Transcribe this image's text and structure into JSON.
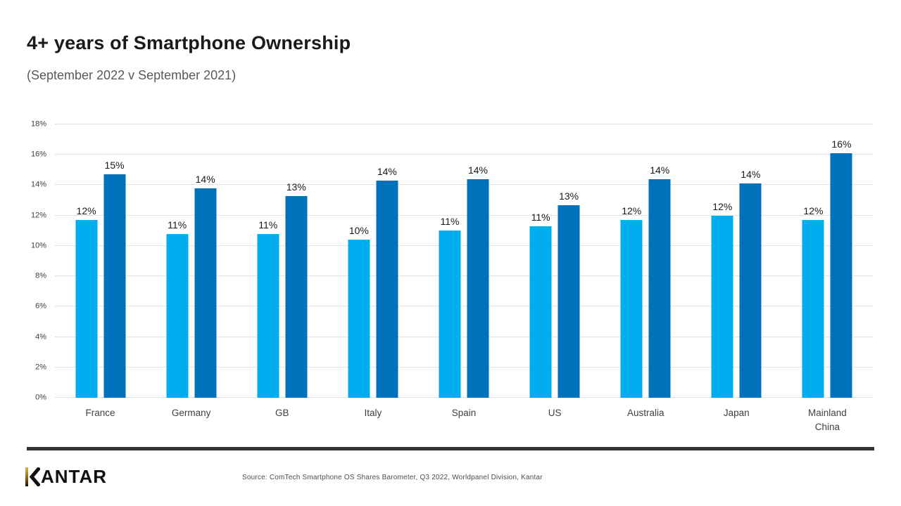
{
  "page": {
    "title": "4+ years of Smartphone Ownership",
    "subtitle": "(September 2022 v September 2021)"
  },
  "footer": {
    "logo_text": "KANTAR",
    "source": "Source: ComTech Smartphone OS Shares Barometer, Q3 2022, Worldpanel Division, Kantar"
  },
  "colors": {
    "series_2022": "#00AEEF",
    "series_2021": "#0072BC",
    "gridline": "#E3E3E3",
    "divider": "#333333",
    "title_text": "#1A1A1A",
    "subtitle_text": "#595959"
  },
  "chart_data": {
    "type": "bar",
    "title": "4+ years of Smartphone Ownership",
    "subtitle": "(September 2022 v September 2021)",
    "categories": [
      "France",
      "Germany",
      "GB",
      "Italy",
      "Spain",
      "US",
      "Australia",
      "Japan",
      "Mainland China"
    ],
    "series": [
      {
        "name": "September 2022",
        "color": "#00AEEF",
        "values": [
          12,
          11,
          11,
          10,
          11,
          11,
          12,
          12,
          12
        ],
        "values_precise": [
          11.7,
          10.8,
          10.8,
          10.4,
          11.0,
          11.3,
          11.7,
          12.0,
          11.7
        ]
      },
      {
        "name": "September 2021",
        "color": "#0072BC",
        "values": [
          15,
          14,
          13,
          14,
          14,
          13,
          14,
          14,
          16
        ],
        "values_precise": [
          14.7,
          13.8,
          13.3,
          14.3,
          14.4,
          12.7,
          14.4,
          14.1,
          16.1
        ]
      }
    ],
    "ylim": [
      0,
      18
    ],
    "ytick_step": 2,
    "ytick_labels": [
      "0%",
      "2%",
      "4%",
      "6%",
      "8%",
      "10%",
      "12%",
      "14%",
      "16%",
      "18%"
    ],
    "value_label_suffix": "%",
    "grid": true,
    "legend": "none"
  }
}
